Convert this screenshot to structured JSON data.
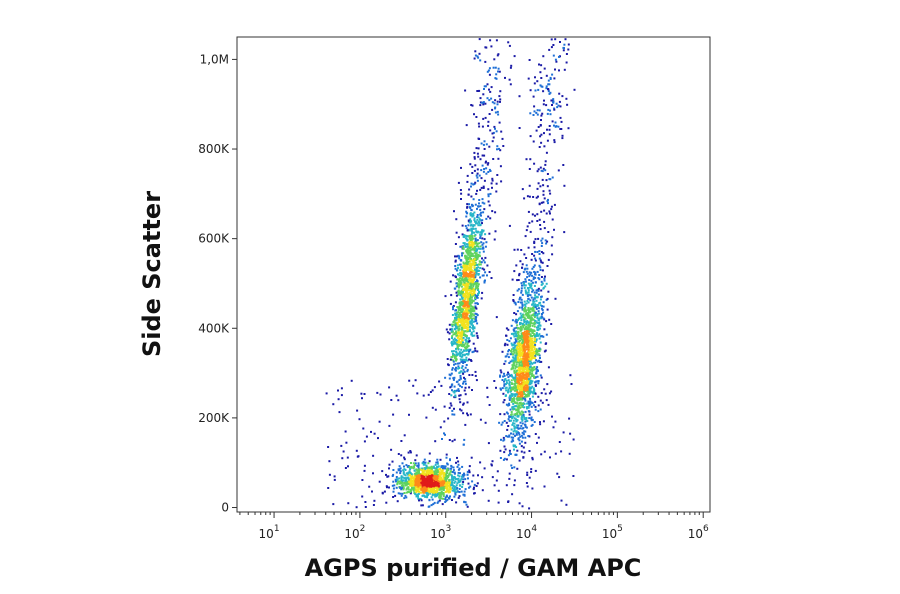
{
  "chart_data": {
    "type": "scatter",
    "style": "density-dot-plot",
    "xlabel": "AGPS purified / GAM APC",
    "ylabel": "Side Scatter",
    "x_scale": "log",
    "xlim": [
      3.7,
      1200000
    ],
    "ylim": [
      -10000,
      1050000
    ],
    "x_ticks": [
      {
        "value": 10,
        "base": "10",
        "exp": "1"
      },
      {
        "value": 100,
        "base": "10",
        "exp": "2"
      },
      {
        "value": 1000,
        "base": "10",
        "exp": "3"
      },
      {
        "value": 10000,
        "base": "10",
        "exp": "4"
      },
      {
        "value": 100000,
        "base": "10",
        "exp": "5"
      },
      {
        "value": 1000000,
        "base": "10",
        "exp": "6"
      }
    ],
    "y_ticks": [
      {
        "value": 0,
        "label": "0"
      },
      {
        "value": 200000,
        "label": "200K"
      },
      {
        "value": 400000,
        "label": "400K"
      },
      {
        "value": 600000,
        "label": "600K"
      },
      {
        "value": 800000,
        "label": "800K"
      },
      {
        "value": 1000000,
        "label": "1,0M"
      }
    ],
    "grid": false,
    "color_scale": [
      "#1a1aa6",
      "#1e6fd6",
      "#27b6c8",
      "#5fd35f",
      "#f2e21e",
      "#ff8a1a",
      "#e01a1a"
    ],
    "populations": [
      {
        "x_center": 630,
        "y_center": 60000,
        "x_spread_decades": 0.2,
        "y_spread": 20000,
        "weight": 0.24
      },
      {
        "x_center": 1700,
        "y_center": 470000,
        "x_spread_decades": 0.07,
        "y_spread": 95000,
        "weight": 0.28
      },
      {
        "x_center": 8000,
        "y_center": 330000,
        "x_spread_decades": 0.09,
        "y_spread": 90000,
        "weight": 0.34
      }
    ]
  }
}
